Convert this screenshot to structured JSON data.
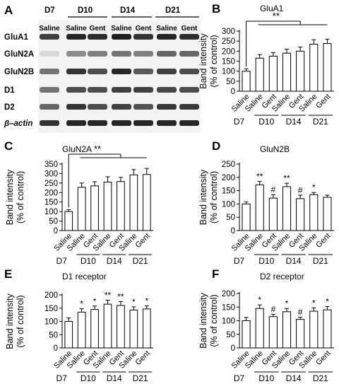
{
  "panel_letters": [
    "A",
    "B",
    "C",
    "D",
    "E",
    "F"
  ],
  "blot": {
    "top_labels": [
      "D7",
      "D10",
      "D14",
      "D21"
    ],
    "lanes": [
      "Saline",
      "Saline",
      "Gent",
      "Saline",
      "Gent",
      "Saline",
      "Gent"
    ],
    "proteins": [
      "GluA1",
      "GluN2A",
      "GluN2B",
      "D1",
      "D2",
      "β–actin"
    ]
  },
  "chart_data": [
    {
      "panel": "B",
      "type": "bar",
      "title": "GluA1",
      "ylabel": "Band intensity (% of control)",
      "ylim": [
        0,
        300
      ],
      "yticks": [
        0,
        50,
        100,
        150,
        200,
        250,
        300
      ],
      "categories": [
        "Saline",
        "Saline",
        "Gent",
        "Saline",
        "Gent",
        "Saline",
        "Gent"
      ],
      "groups": [
        "D7",
        "D10",
        "D14",
        "D21"
      ],
      "values": [
        100,
        165,
        175,
        190,
        200,
        235,
        238
      ],
      "errors": [
        12,
        18,
        18,
        20,
        20,
        22,
        22
      ],
      "marks": [
        "",
        "",
        "",
        "",
        "",
        "",
        ""
      ],
      "bracket": "**"
    },
    {
      "panel": "C",
      "type": "bar",
      "title": "GluN2A",
      "ylabel": "Band intensity (% of control)",
      "ylim": [
        0,
        350
      ],
      "yticks": [
        0,
        50,
        100,
        150,
        200,
        250,
        300,
        350
      ],
      "categories": [
        "Saline",
        "Saline",
        "Gent",
        "Saline",
        "Gent",
        "Saline",
        "Gent"
      ],
      "groups": [
        "D7",
        "D10",
        "D14",
        "D21"
      ],
      "values": [
        100,
        228,
        235,
        255,
        258,
        293,
        295
      ],
      "errors": [
        10,
        22,
        22,
        28,
        22,
        28,
        32
      ],
      "marks": [
        "",
        "",
        "",
        "",
        "",
        "",
        ""
      ],
      "bracket": "**"
    },
    {
      "panel": "D",
      "type": "bar",
      "title": "GluN2B",
      "ylabel": "Band intensity (% of control)",
      "ylim": [
        0,
        250
      ],
      "yticks": [
        0,
        50,
        100,
        150,
        200,
        250
      ],
      "categories": [
        "Saline",
        "Saline",
        "Gent",
        "Saline",
        "Gent",
        "Saline",
        "Gent"
      ],
      "groups": [
        "D7",
        "D10",
        "D14",
        "D21"
      ],
      "values": [
        100,
        172,
        122,
        165,
        120,
        135,
        125
      ],
      "errors": [
        8,
        13,
        13,
        13,
        13,
        8,
        8
      ],
      "marks": [
        "",
        "**",
        "#",
        "**",
        "#",
        "*",
        ""
      ],
      "bracket": ""
    },
    {
      "panel": "E",
      "type": "bar",
      "title": "D1 receptor",
      "ylabel": "Band intensity (% of control)",
      "ylim": [
        0,
        200
      ],
      "yticks": [
        0,
        50,
        100,
        150,
        200
      ],
      "categories": [
        "Saline",
        "Saline",
        "Gent",
        "Saline",
        "Gent",
        "Saline",
        "Gent"
      ],
      "groups": [
        "D7",
        "D10",
        "D14",
        "D21"
      ],
      "values": [
        100,
        135,
        145,
        165,
        160,
        143,
        147
      ],
      "errors": [
        13,
        13,
        13,
        15,
        15,
        12,
        12
      ],
      "marks": [
        "",
        "*",
        "*",
        "**",
        "**",
        "*",
        "*"
      ],
      "bracket": ""
    },
    {
      "panel": "F",
      "type": "bar",
      "title": "D2 receptor",
      "ylabel": "Band intensity (% of control)",
      "ylim": [
        0,
        200
      ],
      "yticks": [
        0,
        50,
        100,
        150,
        200
      ],
      "categories": [
        "Saline",
        "Saline",
        "Gent",
        "Saline",
        "Gent",
        "Saline",
        "Gent"
      ],
      "groups": [
        "D7",
        "D10",
        "D14",
        "D21"
      ],
      "values": [
        100,
        145,
        115,
        133,
        105,
        135,
        140
      ],
      "errors": [
        12,
        13,
        8,
        12,
        8,
        12,
        12
      ],
      "marks": [
        "",
        "*",
        "#",
        "*",
        "#",
        "*",
        "*"
      ],
      "bracket": ""
    }
  ]
}
